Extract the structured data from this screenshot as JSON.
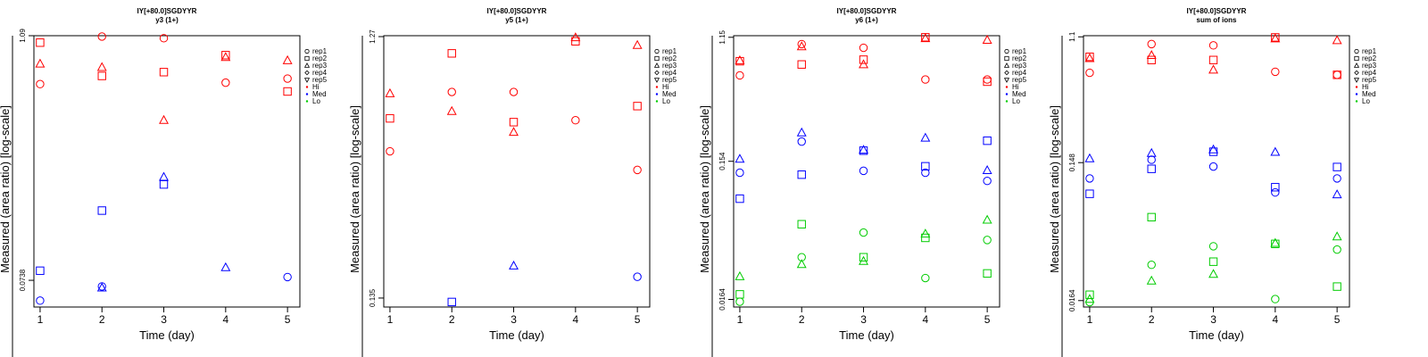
{
  "chart_data": [
    {
      "type": "scatter",
      "title": "IY[+80.0]SGDYYR",
      "subtitle": "y3 (1+)",
      "xlabel": "Time (day)",
      "ylabel": "Measured (area ratio) [log-scale]",
      "log_y": true,
      "ylim": [
        0.055,
        1.09
      ],
      "xlim": [
        0.9,
        5.2
      ],
      "x_ticks": [
        "1",
        "2",
        "3",
        "4",
        "5"
      ],
      "y_ticks": [
        {
          "value": 0.0738,
          "label": "0.0738"
        },
        {
          "value": 1.09,
          "label": "1.09"
        }
      ],
      "legend": [
        "rep1",
        "rep2",
        "rep3",
        "rep4",
        "rep5",
        "Hi",
        "Med",
        "Lo"
      ],
      "legend_position": "right",
      "colors": {
        "Hi": "#ff0000",
        "Med": "#0000ff",
        "Lo": "#00cc00"
      },
      "points": [
        {
          "x": 1,
          "y": 1.01,
          "rep": "rep2",
          "group": "Hi"
        },
        {
          "x": 1,
          "y": 0.8,
          "rep": "rep3",
          "group": "Hi"
        },
        {
          "x": 1,
          "y": 0.64,
          "rep": "rep1",
          "group": "Hi"
        },
        {
          "x": 2,
          "y": 1.08,
          "rep": "rep1",
          "group": "Hi"
        },
        {
          "x": 2,
          "y": 0.77,
          "rep": "rep3",
          "group": "Hi"
        },
        {
          "x": 2,
          "y": 0.7,
          "rep": "rep2",
          "group": "Hi"
        },
        {
          "x": 3,
          "y": 1.06,
          "rep": "rep1",
          "group": "Hi"
        },
        {
          "x": 3,
          "y": 0.73,
          "rep": "rep2",
          "group": "Hi"
        },
        {
          "x": 3,
          "y": 0.43,
          "rep": "rep3",
          "group": "Hi"
        },
        {
          "x": 4,
          "y": 0.88,
          "rep": "rep2",
          "group": "Hi"
        },
        {
          "x": 4,
          "y": 0.86,
          "rep": "rep3",
          "group": "Hi"
        },
        {
          "x": 4,
          "y": 0.65,
          "rep": "rep1",
          "group": "Hi"
        },
        {
          "x": 5,
          "y": 0.83,
          "rep": "rep3",
          "group": "Hi"
        },
        {
          "x": 5,
          "y": 0.68,
          "rep": "rep1",
          "group": "Hi"
        },
        {
          "x": 5,
          "y": 0.59,
          "rep": "rep2",
          "group": "Hi"
        },
        {
          "x": 1,
          "y": 0.082,
          "rep": "rep2",
          "group": "Med"
        },
        {
          "x": 1,
          "y": 0.059,
          "rep": "rep1",
          "group": "Med"
        },
        {
          "x": 2,
          "y": 0.159,
          "rep": "rep2",
          "group": "Med"
        },
        {
          "x": 2,
          "y": 0.069,
          "rep": "rep1",
          "group": "Med"
        },
        {
          "x": 2,
          "y": 0.068,
          "rep": "rep3",
          "group": "Med"
        },
        {
          "x": 3,
          "y": 0.23,
          "rep": "rep3",
          "group": "Med"
        },
        {
          "x": 3,
          "y": 0.212,
          "rep": "rep2",
          "group": "Med"
        },
        {
          "x": 4,
          "y": 0.085,
          "rep": "rep3",
          "group": "Med"
        },
        {
          "x": 5,
          "y": 0.0765,
          "rep": "rep1",
          "group": "Med"
        }
      ]
    },
    {
      "type": "scatter",
      "title": "IY[+80.0]SGDYYR",
      "subtitle": "y5 (1+)",
      "xlabel": "Time (day)",
      "ylabel": "Measured (area ratio) [log-scale]",
      "log_y": true,
      "ylim": [
        0.125,
        1.28
      ],
      "xlim": [
        0.9,
        5.2
      ],
      "x_ticks": [
        "1",
        "2",
        "3",
        "4",
        "5"
      ],
      "y_ticks": [
        {
          "value": 0.135,
          "label": "0.135"
        },
        {
          "value": 1.27,
          "label": "1.27"
        }
      ],
      "legend": [
        "rep1",
        "rep2",
        "rep3",
        "rep4",
        "rep5",
        "Hi",
        "Med",
        "Lo"
      ],
      "legend_position": "right",
      "colors": {
        "Hi": "#ff0000",
        "Med": "#0000ff",
        "Lo": "#00cc00"
      },
      "points": [
        {
          "x": 1,
          "y": 0.78,
          "rep": "rep3",
          "group": "Hi"
        },
        {
          "x": 1,
          "y": 0.63,
          "rep": "rep2",
          "group": "Hi"
        },
        {
          "x": 1,
          "y": 0.475,
          "rep": "rep1",
          "group": "Hi"
        },
        {
          "x": 2,
          "y": 1.1,
          "rep": "rep2",
          "group": "Hi"
        },
        {
          "x": 2,
          "y": 0.79,
          "rep": "rep1",
          "group": "Hi"
        },
        {
          "x": 2,
          "y": 0.67,
          "rep": "rep3",
          "group": "Hi"
        },
        {
          "x": 3,
          "y": 0.79,
          "rep": "rep1",
          "group": "Hi"
        },
        {
          "x": 3,
          "y": 0.61,
          "rep": "rep2",
          "group": "Hi"
        },
        {
          "x": 3,
          "y": 0.56,
          "rep": "rep3",
          "group": "Hi"
        },
        {
          "x": 4,
          "y": 1.26,
          "rep": "rep3",
          "group": "Hi"
        },
        {
          "x": 4,
          "y": 1.22,
          "rep": "rep2",
          "group": "Hi"
        },
        {
          "x": 4,
          "y": 0.62,
          "rep": "rep1",
          "group": "Hi"
        },
        {
          "x": 5,
          "y": 1.18,
          "rep": "rep3",
          "group": "Hi"
        },
        {
          "x": 5,
          "y": 0.7,
          "rep": "rep2",
          "group": "Hi"
        },
        {
          "x": 5,
          "y": 0.405,
          "rep": "rep1",
          "group": "Hi"
        },
        {
          "x": 2,
          "y": 0.1305,
          "rep": "rep2",
          "group": "Med"
        },
        {
          "x": 3,
          "y": 0.178,
          "rep": "rep3",
          "group": "Med"
        },
        {
          "x": 5,
          "y": 0.162,
          "rep": "rep1",
          "group": "Med"
        }
      ]
    },
    {
      "type": "scatter",
      "title": "IY[+80.0]SGDYYR",
      "subtitle": "y6 (1+)",
      "xlabel": "Time (day)",
      "ylabel": "Measured (area ratio) [log-scale]",
      "log_y": true,
      "ylim": [
        0.0145,
        1.18
      ],
      "xlim": [
        0.9,
        5.2
      ],
      "x_ticks": [
        "1",
        "2",
        "3",
        "4",
        "5"
      ],
      "y_ticks": [
        {
          "value": 0.0164,
          "label": "0.0164"
        },
        {
          "value": 0.154,
          "label": "0.154"
        },
        {
          "value": 1.15,
          "label": "1.15"
        }
      ],
      "legend": [
        "rep1",
        "rep2",
        "rep3",
        "rep4",
        "rep5",
        "Hi",
        "Med",
        "Lo"
      ],
      "legend_position": "right",
      "colors": {
        "Hi": "#ff0000",
        "Med": "#0000ff",
        "Lo": "#00cc00"
      },
      "points": [
        {
          "x": 1,
          "y": 0.79,
          "rep": "rep3",
          "group": "Hi"
        },
        {
          "x": 1,
          "y": 0.78,
          "rep": "rep2",
          "group": "Hi"
        },
        {
          "x": 1,
          "y": 0.62,
          "rep": "rep1",
          "group": "Hi"
        },
        {
          "x": 2,
          "y": 1.03,
          "rep": "rep1",
          "group": "Hi"
        },
        {
          "x": 2,
          "y": 0.99,
          "rep": "rep3",
          "group": "Hi"
        },
        {
          "x": 2,
          "y": 0.74,
          "rep": "rep2",
          "group": "Hi"
        },
        {
          "x": 3,
          "y": 0.97,
          "rep": "rep1",
          "group": "Hi"
        },
        {
          "x": 3,
          "y": 0.8,
          "rep": "rep2",
          "group": "Hi"
        },
        {
          "x": 3,
          "y": 0.74,
          "rep": "rep3",
          "group": "Hi"
        },
        {
          "x": 4,
          "y": 1.15,
          "rep": "rep2",
          "group": "Hi"
        },
        {
          "x": 4,
          "y": 1.13,
          "rep": "rep3",
          "group": "Hi"
        },
        {
          "x": 4,
          "y": 0.58,
          "rep": "rep1",
          "group": "Hi"
        },
        {
          "x": 5,
          "y": 1.1,
          "rep": "rep3",
          "group": "Hi"
        },
        {
          "x": 5,
          "y": 0.58,
          "rep": "rep1",
          "group": "Hi"
        },
        {
          "x": 5,
          "y": 0.56,
          "rep": "rep2",
          "group": "Hi"
        },
        {
          "x": 1,
          "y": 0.16,
          "rep": "rep3",
          "group": "Med"
        },
        {
          "x": 1,
          "y": 0.128,
          "rep": "rep1",
          "group": "Med"
        },
        {
          "x": 1,
          "y": 0.084,
          "rep": "rep2",
          "group": "Med"
        },
        {
          "x": 2,
          "y": 0.245,
          "rep": "rep3",
          "group": "Med"
        },
        {
          "x": 2,
          "y": 0.212,
          "rep": "rep1",
          "group": "Med"
        },
        {
          "x": 2,
          "y": 0.124,
          "rep": "rep2",
          "group": "Med"
        },
        {
          "x": 3,
          "y": 0.185,
          "rep": "rep3",
          "group": "Med"
        },
        {
          "x": 3,
          "y": 0.183,
          "rep": "rep2",
          "group": "Med"
        },
        {
          "x": 3,
          "y": 0.132,
          "rep": "rep1",
          "group": "Med"
        },
        {
          "x": 4,
          "y": 0.225,
          "rep": "rep3",
          "group": "Med"
        },
        {
          "x": 4,
          "y": 0.142,
          "rep": "rep2",
          "group": "Med"
        },
        {
          "x": 4,
          "y": 0.128,
          "rep": "rep1",
          "group": "Med"
        },
        {
          "x": 5,
          "y": 0.215,
          "rep": "rep2",
          "group": "Med"
        },
        {
          "x": 5,
          "y": 0.133,
          "rep": "rep3",
          "group": "Med"
        },
        {
          "x": 5,
          "y": 0.112,
          "rep": "rep1",
          "group": "Med"
        },
        {
          "x": 1,
          "y": 0.0238,
          "rep": "rep3",
          "group": "Lo"
        },
        {
          "x": 1,
          "y": 0.0178,
          "rep": "rep2",
          "group": "Lo"
        },
        {
          "x": 1,
          "y": 0.0158,
          "rep": "rep1",
          "group": "Lo"
        },
        {
          "x": 2,
          "y": 0.0555,
          "rep": "rep2",
          "group": "Lo"
        },
        {
          "x": 2,
          "y": 0.0325,
          "rep": "rep1",
          "group": "Lo"
        },
        {
          "x": 2,
          "y": 0.029,
          "rep": "rep3",
          "group": "Lo"
        },
        {
          "x": 3,
          "y": 0.0485,
          "rep": "rep1",
          "group": "Lo"
        },
        {
          "x": 3,
          "y": 0.0325,
          "rep": "rep2",
          "group": "Lo"
        },
        {
          "x": 3,
          "y": 0.0305,
          "rep": "rep3",
          "group": "Lo"
        },
        {
          "x": 4,
          "y": 0.0475,
          "rep": "rep3",
          "group": "Lo"
        },
        {
          "x": 4,
          "y": 0.0445,
          "rep": "rep2",
          "group": "Lo"
        },
        {
          "x": 4,
          "y": 0.0232,
          "rep": "rep1",
          "group": "Lo"
        },
        {
          "x": 5,
          "y": 0.0595,
          "rep": "rep3",
          "group": "Lo"
        },
        {
          "x": 5,
          "y": 0.043,
          "rep": "rep1",
          "group": "Lo"
        },
        {
          "x": 5,
          "y": 0.025,
          "rep": "rep2",
          "group": "Lo"
        }
      ]
    },
    {
      "type": "scatter",
      "title": "IY[+80.0]SGDYYR",
      "subtitle": "sum of ions",
      "xlabel": "Time (day)",
      "ylabel": "Measured (area ratio) [log-scale]",
      "log_y": true,
      "ylim": [
        0.0148,
        1.12
      ],
      "xlim": [
        0.9,
        5.2
      ],
      "x_ticks": [
        "1",
        "2",
        "3",
        "4",
        "5"
      ],
      "y_ticks": [
        {
          "value": 0.0164,
          "label": "0.0164"
        },
        {
          "value": 0.148,
          "label": "0.148"
        },
        {
          "value": 1.1,
          "label": "1.1"
        }
      ],
      "legend": [
        "rep1",
        "rep2",
        "rep3",
        "rep4",
        "rep5",
        "Hi",
        "Med",
        "Lo"
      ],
      "legend_position": "right",
      "colors": {
        "Hi": "#ff0000",
        "Med": "#0000ff",
        "Lo": "#00cc00"
      },
      "points": [
        {
          "x": 1,
          "y": 0.8,
          "rep": "rep2",
          "group": "Hi"
        },
        {
          "x": 1,
          "y": 0.78,
          "rep": "rep3",
          "group": "Hi"
        },
        {
          "x": 1,
          "y": 0.62,
          "rep": "rep1",
          "group": "Hi"
        },
        {
          "x": 2,
          "y": 0.98,
          "rep": "rep1",
          "group": "Hi"
        },
        {
          "x": 2,
          "y": 0.82,
          "rep": "rep3",
          "group": "Hi"
        },
        {
          "x": 2,
          "y": 0.76,
          "rep": "rep2",
          "group": "Hi"
        },
        {
          "x": 3,
          "y": 0.96,
          "rep": "rep1",
          "group": "Hi"
        },
        {
          "x": 3,
          "y": 0.76,
          "rep": "rep2",
          "group": "Hi"
        },
        {
          "x": 3,
          "y": 0.65,
          "rep": "rep3",
          "group": "Hi"
        },
        {
          "x": 4,
          "y": 1.09,
          "rep": "rep2",
          "group": "Hi"
        },
        {
          "x": 4,
          "y": 1.07,
          "rep": "rep3",
          "group": "Hi"
        },
        {
          "x": 4,
          "y": 0.63,
          "rep": "rep1",
          "group": "Hi"
        },
        {
          "x": 5,
          "y": 1.04,
          "rep": "rep3",
          "group": "Hi"
        },
        {
          "x": 5,
          "y": 0.6,
          "rep": "rep1",
          "group": "Hi"
        },
        {
          "x": 5,
          "y": 0.6,
          "rep": "rep2",
          "group": "Hi"
        },
        {
          "x": 1,
          "y": 0.158,
          "rep": "rep3",
          "group": "Med"
        },
        {
          "x": 1,
          "y": 0.115,
          "rep": "rep1",
          "group": "Med"
        },
        {
          "x": 1,
          "y": 0.09,
          "rep": "rep2",
          "group": "Med"
        },
        {
          "x": 2,
          "y": 0.172,
          "rep": "rep3",
          "group": "Med"
        },
        {
          "x": 2,
          "y": 0.155,
          "rep": "rep1",
          "group": "Med"
        },
        {
          "x": 2,
          "y": 0.134,
          "rep": "rep2",
          "group": "Med"
        },
        {
          "x": 3,
          "y": 0.182,
          "rep": "rep3",
          "group": "Med"
        },
        {
          "x": 3,
          "y": 0.176,
          "rep": "rep2",
          "group": "Med"
        },
        {
          "x": 3,
          "y": 0.139,
          "rep": "rep1",
          "group": "Med"
        },
        {
          "x": 4,
          "y": 0.175,
          "rep": "rep3",
          "group": "Med"
        },
        {
          "x": 4,
          "y": 0.1,
          "rep": "rep2",
          "group": "Med"
        },
        {
          "x": 4,
          "y": 0.092,
          "rep": "rep1",
          "group": "Med"
        },
        {
          "x": 5,
          "y": 0.138,
          "rep": "rep2",
          "group": "Med"
        },
        {
          "x": 5,
          "y": 0.115,
          "rep": "rep1",
          "group": "Med"
        },
        {
          "x": 5,
          "y": 0.089,
          "rep": "rep3",
          "group": "Med"
        },
        {
          "x": 1,
          "y": 0.018,
          "rep": "rep2",
          "group": "Lo"
        },
        {
          "x": 1,
          "y": 0.0168,
          "rep": "rep3",
          "group": "Lo"
        },
        {
          "x": 1,
          "y": 0.016,
          "rep": "rep1",
          "group": "Lo"
        },
        {
          "x": 2,
          "y": 0.062,
          "rep": "rep2",
          "group": "Lo"
        },
        {
          "x": 2,
          "y": 0.029,
          "rep": "rep1",
          "group": "Lo"
        },
        {
          "x": 2,
          "y": 0.0225,
          "rep": "rep3",
          "group": "Lo"
        },
        {
          "x": 3,
          "y": 0.039,
          "rep": "rep1",
          "group": "Lo"
        },
        {
          "x": 3,
          "y": 0.0305,
          "rep": "rep2",
          "group": "Lo"
        },
        {
          "x": 3,
          "y": 0.025,
          "rep": "rep3",
          "group": "Lo"
        },
        {
          "x": 4,
          "y": 0.041,
          "rep": "rep3",
          "group": "Lo"
        },
        {
          "x": 4,
          "y": 0.0405,
          "rep": "rep2",
          "group": "Lo"
        },
        {
          "x": 4,
          "y": 0.0168,
          "rep": "rep1",
          "group": "Lo"
        },
        {
          "x": 5,
          "y": 0.0455,
          "rep": "rep3",
          "group": "Lo"
        },
        {
          "x": 5,
          "y": 0.037,
          "rep": "rep1",
          "group": "Lo"
        },
        {
          "x": 5,
          "y": 0.0205,
          "rep": "rep2",
          "group": "Lo"
        }
      ]
    }
  ]
}
